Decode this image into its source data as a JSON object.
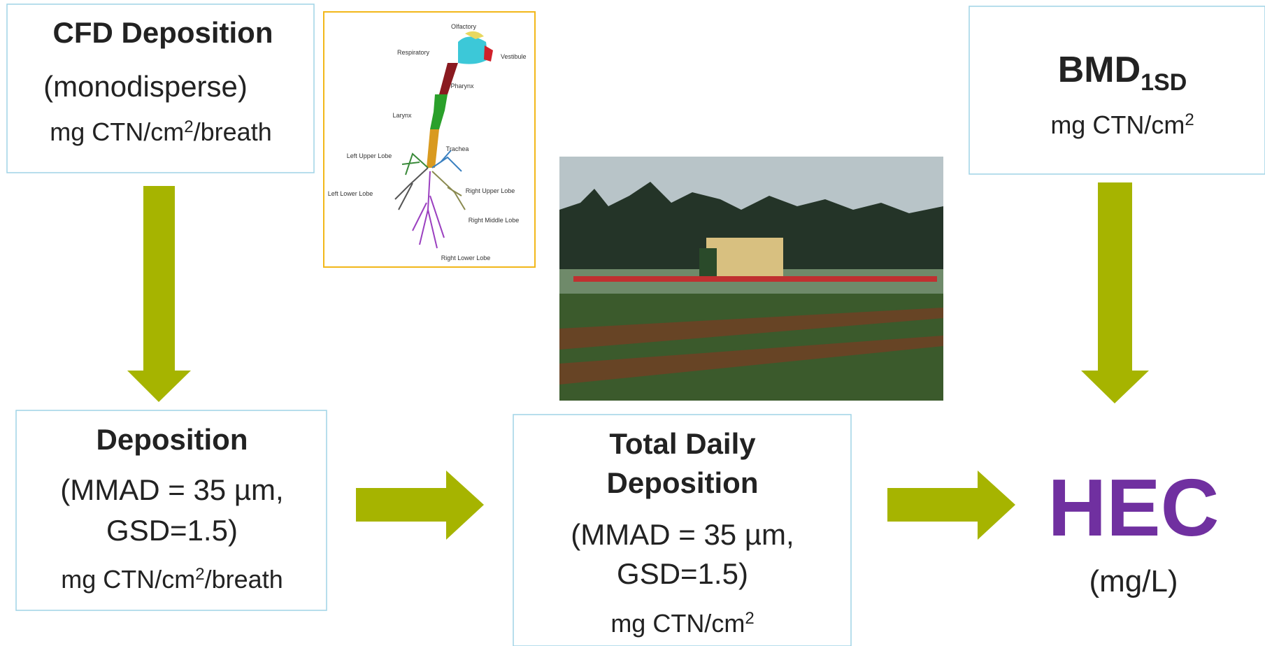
{
  "cfd_box": {
    "title": "CFD Deposition",
    "subtitle": "(monodisperse)",
    "unit": [
      "mg CTN/cm",
      "2",
      "/breath"
    ]
  },
  "lung_diagram": {
    "labels": [
      "Olfactory",
      "Respiratory",
      "Vestibule",
      "Pharynx",
      "Larynx",
      "Trachea",
      "Left Upper Lobe",
      "Right Upper Lobe",
      "Left Lower Lobe",
      "Right Middle Lobe",
      "Right Lower Lobe"
    ]
  },
  "bmd_box": {
    "title": [
      "BMD",
      "1SD"
    ],
    "unit": [
      "mg CTN/cm",
      "2"
    ]
  },
  "deposition_box": {
    "title": "Deposition",
    "lines": [
      "(MMAD = 35 µm,",
      "GSD=1.5)"
    ],
    "unit": [
      "mg CTN/cm",
      "2",
      "/breath"
    ]
  },
  "total_box": {
    "title": [
      "Total Daily",
      "Deposition"
    ],
    "lines": [
      "(MMAD = 35 µm,",
      "GSD=1.5)"
    ],
    "unit": [
      "mg CTN/cm",
      "2"
    ]
  },
  "result": {
    "title": "HEC",
    "unit": "(mg/L)"
  }
}
